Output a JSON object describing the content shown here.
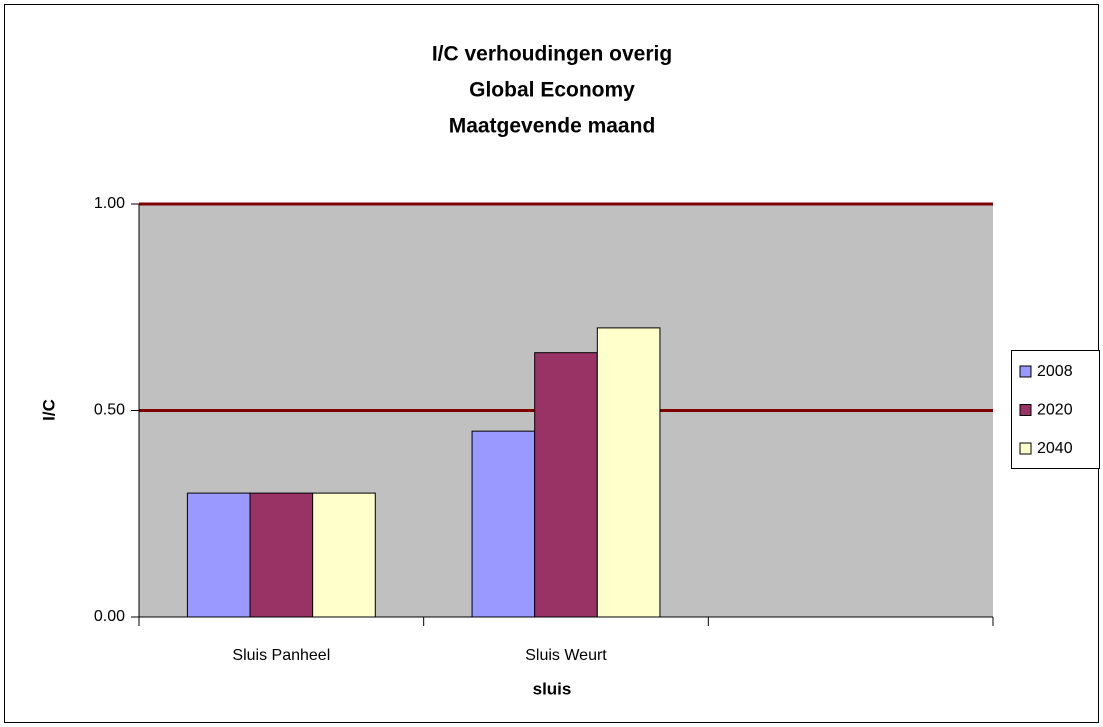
{
  "chart_data": {
    "type": "bar",
    "title": [
      "I/C verhoudingen overig",
      "Global Economy",
      "Maatgevende maand"
    ],
    "xlabel": "sluis",
    "ylabel": "I/C",
    "categories": [
      "Sluis Panheel",
      "Sluis Weurt",
      null
    ],
    "series": [
      {
        "name": "2008",
        "color": "#9999ff",
        "values": [
          0.3,
          0.45,
          null
        ]
      },
      {
        "name": "2020",
        "color": "#993366",
        "values": [
          0.3,
          0.64,
          null
        ]
      },
      {
        "name": "2040",
        "color": "#ffffcc",
        "values": [
          0.3,
          0.7,
          null
        ]
      }
    ],
    "ylim": [
      0,
      1
    ],
    "yticks": [
      {
        "value": 0,
        "label": "0.00"
      },
      {
        "value": 0.5,
        "label": "0.50"
      },
      {
        "value": 1,
        "label": "1.00"
      }
    ],
    "grid": true,
    "grid_color": "#800000",
    "plot_background": "#c0c0c0",
    "legend": "right"
  }
}
